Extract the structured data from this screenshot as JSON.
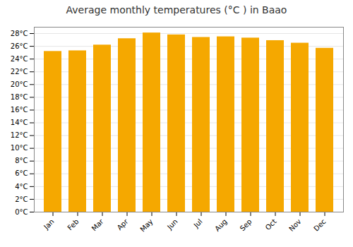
{
  "chart_data": {
    "type": "bar",
    "title": "Average monthly temperatures (°C ) in Baao",
    "categories": [
      "Jan",
      "Feb",
      "Mar",
      "Apr",
      "May",
      "Jun",
      "Jul",
      "Aug",
      "Sep",
      "Oct",
      "Nov",
      "Dec"
    ],
    "values": [
      25.2,
      25.3,
      26.2,
      27.2,
      28.1,
      27.8,
      27.4,
      27.5,
      27.3,
      26.9,
      26.5,
      25.7
    ],
    "color": "#F5A800",
    "ylim": [
      0,
      29
    ],
    "yticks": [
      {
        "value": 0,
        "label": "0°C"
      },
      {
        "value": 2,
        "label": "2°C"
      },
      {
        "value": 4,
        "label": "4°C"
      },
      {
        "value": 6,
        "label": "6°C"
      },
      {
        "value": 8,
        "label": "8°C"
      },
      {
        "value": 10,
        "label": "10°C"
      },
      {
        "value": 12,
        "label": "12°C"
      },
      {
        "value": 14,
        "label": "14°C"
      },
      {
        "value": 16,
        "label": "16°C"
      },
      {
        "value": 18,
        "label": "18°C"
      },
      {
        "value": 20,
        "label": "20°C"
      },
      {
        "value": 22,
        "label": "22°C"
      },
      {
        "value": 24,
        "label": "24°C"
      },
      {
        "value": 26,
        "label": "26°C"
      },
      {
        "value": 28,
        "label": "28°C"
      }
    ],
    "grid": true
  }
}
